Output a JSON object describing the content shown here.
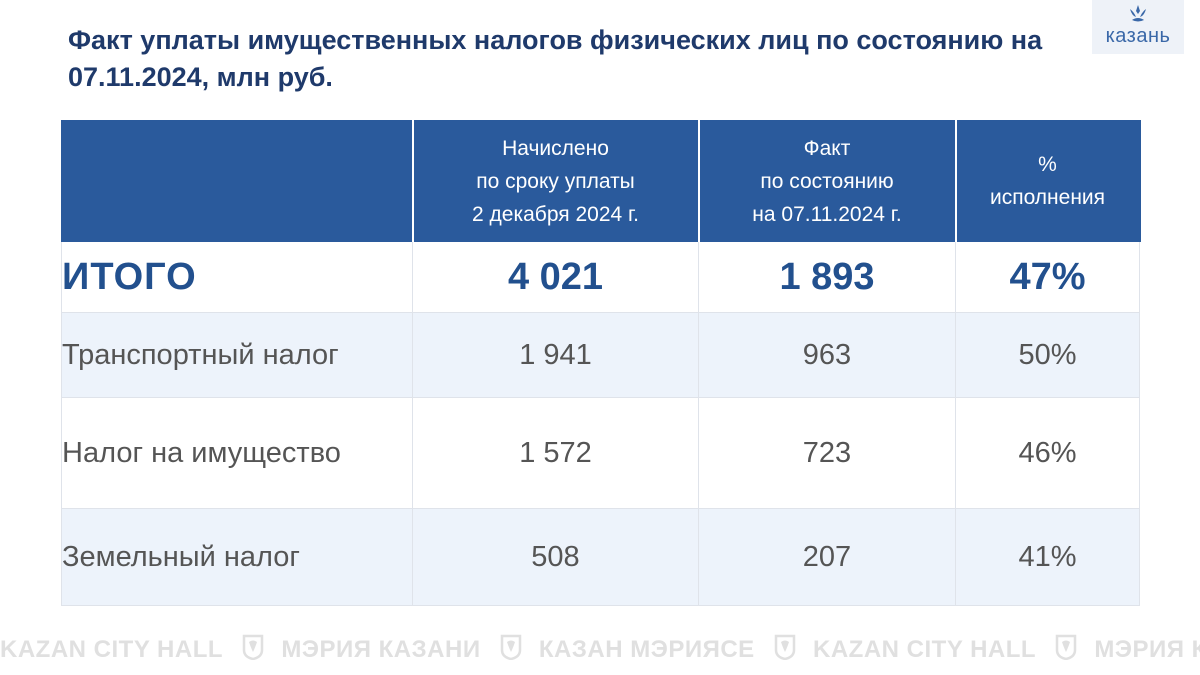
{
  "title": "Факт уплаты имущественных налогов физических лиц по состоянию на 07.11.2024, млн руб.",
  "logo": {
    "text": "казань",
    "icon": "kazan-crown-icon"
  },
  "table": {
    "headers": [
      {
        "lines": []
      },
      {
        "lines": [
          "Начислено",
          "по сроку уплаты",
          "2 декабря 2024 г."
        ]
      },
      {
        "lines": [
          "Факт",
          "по состоянию",
          "на 07.11.2024  г."
        ]
      },
      {
        "lines": [
          "%",
          "исполнения"
        ]
      }
    ],
    "total": {
      "label": "ИТОГО",
      "accrued": "4 021",
      "paid": "1 893",
      "pct": "47%"
    },
    "rows": [
      {
        "label": "Транспортный налог",
        "accrued": "1 941",
        "paid": "963",
        "pct": "50%"
      },
      {
        "label": "Налог на имущество",
        "accrued": "1 572",
        "paid": "723",
        "pct": "46%"
      },
      {
        "label": "Земельный налог",
        "accrued": "508",
        "paid": "207",
        "pct": "41%"
      }
    ]
  },
  "footer": {
    "items": [
      "KAZAN CITY HALL",
      "МЭРИЯ КАЗАНИ",
      "КАЗАН МЭРИЯСЕ",
      "KAZAN CITY HALL",
      "МЭРИЯ КАЗАНИ"
    ],
    "icon": "kazan-emblem-icon"
  },
  "colors": {
    "primary": "#2a5a9c",
    "title": "#1f3a6b",
    "row_alt": "#edf3fb",
    "text": "#555555"
  }
}
